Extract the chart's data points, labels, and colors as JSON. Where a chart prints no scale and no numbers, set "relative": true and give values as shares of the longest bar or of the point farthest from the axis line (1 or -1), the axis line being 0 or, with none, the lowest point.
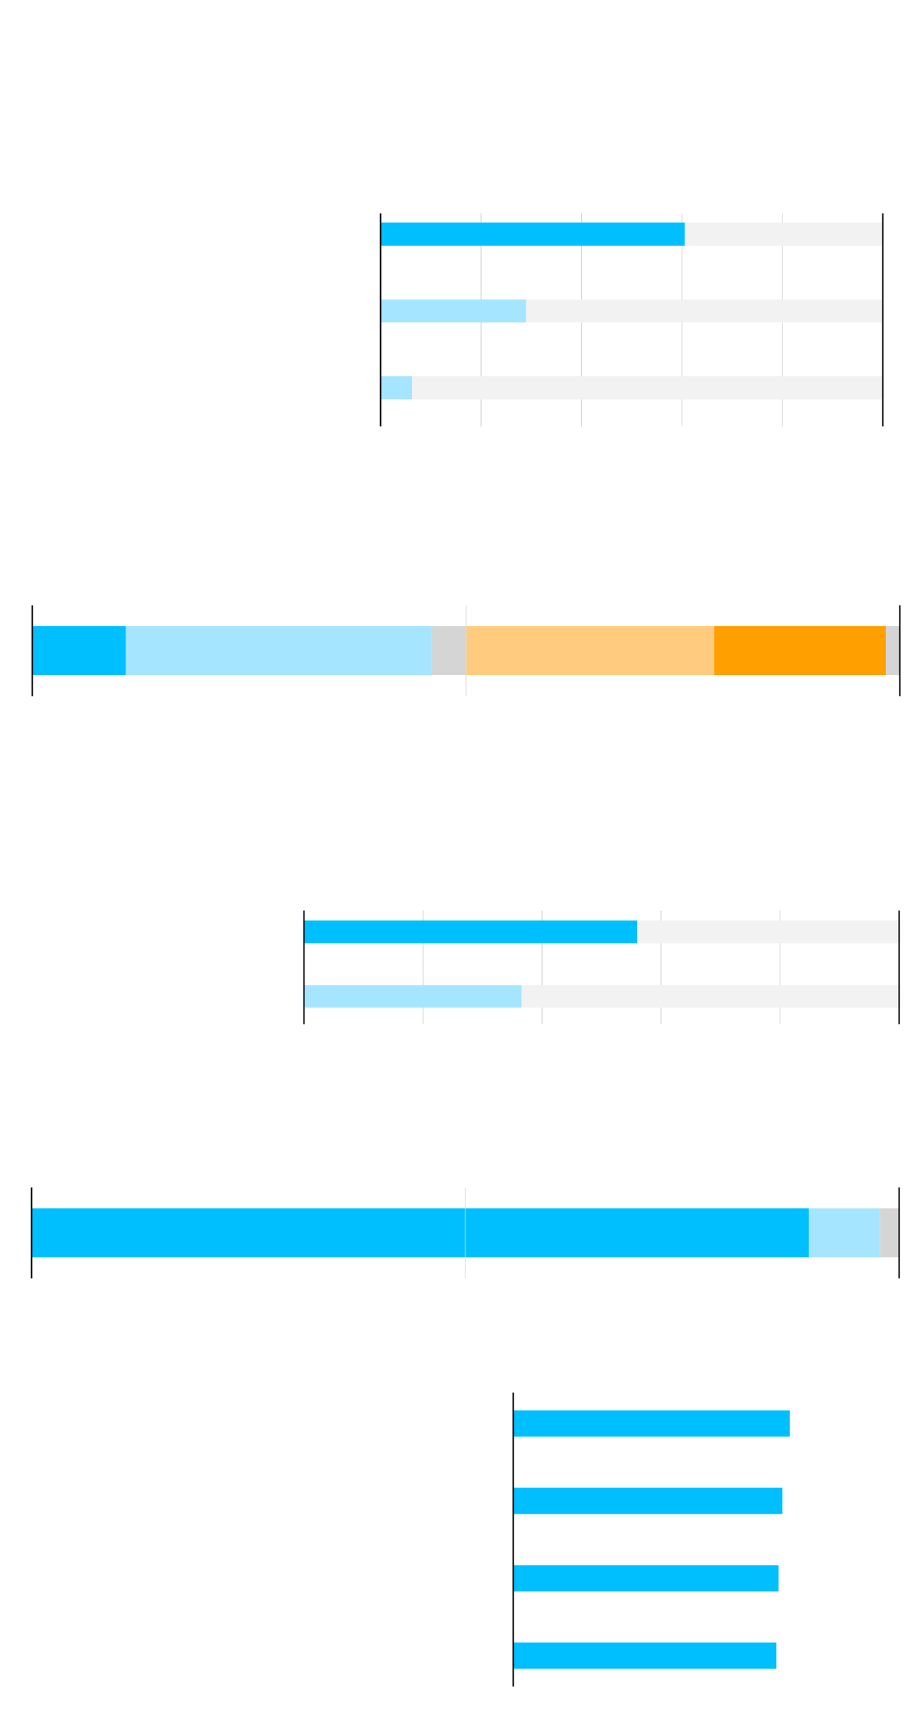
{
  "chart_data": [
    {
      "type": "bar",
      "orientation": "horizontal",
      "relative": true,
      "stacked": true,
      "grid": "x",
      "categories": [
        null,
        null,
        null
      ],
      "series": [
        {
          "colors": [
            "#00bfff",
            "#a6e5ff",
            "#a6e5ff"
          ],
          "values": [
            0.606,
            0.29,
            0.063
          ]
        },
        {
          "color": "#f2f2f2",
          "values": [
            0.394,
            0.71,
            0.937
          ]
        }
      ]
    },
    {
      "type": "bar",
      "orientation": "horizontal",
      "relative": true,
      "stacked": true,
      "categories": [
        null
      ],
      "ref_lines": [
        {
          "axis": "x",
          "value": 0.5,
          "color": "#d9d9d9"
        }
      ],
      "series": [
        {
          "color": "#00bfff",
          "values": [
            0.108
          ]
        },
        {
          "color": "#a6e5ff",
          "values": [
            0.352
          ]
        },
        {
          "color": "#d5d5d5",
          "values": [
            0.04
          ]
        },
        {
          "color": "#ffcc7f",
          "values": [
            0.286
          ]
        },
        {
          "color": "#ffa000",
          "values": [
            0.198
          ]
        },
        {
          "color": "#d5d5d5",
          "values": [
            0.016
          ]
        }
      ]
    },
    {
      "type": "bar",
      "orientation": "horizontal",
      "relative": true,
      "stacked": true,
      "grid": "x",
      "categories": [
        null,
        null
      ],
      "series": [
        {
          "colors": [
            "#00bfff",
            "#a6e5ff"
          ],
          "values": [
            0.56,
            0.366
          ]
        },
        {
          "color": "#f2f2f2",
          "values": [
            0.44,
            0.634
          ]
        }
      ]
    },
    {
      "type": "bar",
      "orientation": "horizontal",
      "relative": true,
      "stacked": true,
      "categories": [
        null
      ],
      "ref_lines": [
        {
          "axis": "x",
          "value": 0.5,
          "color": "#d9d9d9"
        }
      ],
      "series": [
        {
          "color": "#00bfff",
          "values": [
            0.896
          ]
        },
        {
          "color": "#a6e5ff",
          "values": [
            0.082
          ]
        },
        {
          "color": "#d5d5d5",
          "values": [
            0.022
          ]
        }
      ]
    },
    {
      "type": "bar",
      "orientation": "horizontal",
      "relative": true,
      "categories": [
        null,
        null,
        null,
        null
      ],
      "series": [
        {
          "color": "#00bfff",
          "values": [
            1,
            0.973,
            0.959,
            0.951
          ]
        }
      ]
    }
  ]
}
